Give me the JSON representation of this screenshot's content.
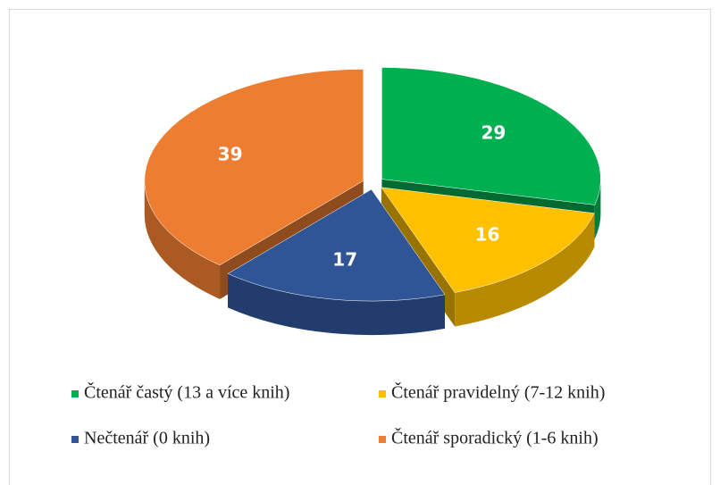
{
  "chart_data": {
    "type": "pie3d",
    "categories": [
      "Čtenář častý (13 a více knih)",
      "Čtenář pravidelný (7-12 knih)",
      "Nečtenář (0 knih)",
      "Čtenář sporadický (1-6 knih)"
    ],
    "values": [
      29,
      16,
      17,
      39
    ],
    "colors": [
      "#00b050",
      "#ffc000",
      "#2f5597",
      "#ed7d31"
    ],
    "legend": "bottom"
  }
}
